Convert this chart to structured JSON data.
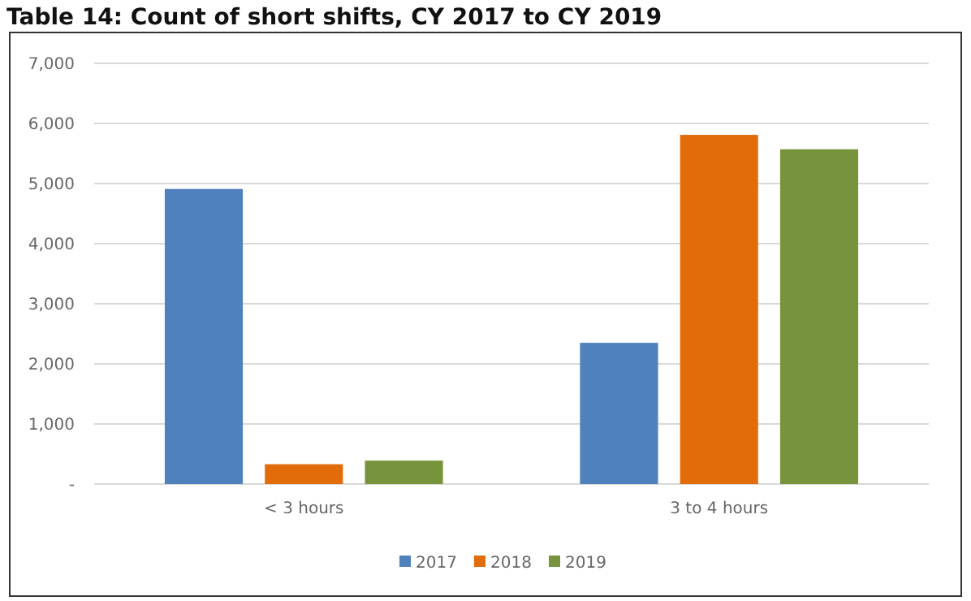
{
  "chart_data": {
    "type": "bar",
    "title": "Table 14: Count of short shifts, CY 2017 to CY 2019",
    "categories": [
      "< 3 hours",
      "3 to 4 hours"
    ],
    "series": [
      {
        "name": "2017",
        "color": "#4f81bd",
        "values": [
          4910,
          2350
        ]
      },
      {
        "name": "2018",
        "color": "#e36c0a",
        "values": [
          330,
          5810
        ]
      },
      {
        "name": "2019",
        "color": "#77933c",
        "values": [
          390,
          5570
        ]
      }
    ],
    "ylim": [
      0,
      7000
    ],
    "yticks": [
      {
        "value": 0,
        "label": "-"
      },
      {
        "value": 1000,
        "label": "1,000"
      },
      {
        "value": 2000,
        "label": "2,000"
      },
      {
        "value": 3000,
        "label": "3,000"
      },
      {
        "value": 4000,
        "label": "4,000"
      },
      {
        "value": 5000,
        "label": "5,000"
      },
      {
        "value": 6000,
        "label": "6,000"
      },
      {
        "value": 7000,
        "label": "7,000"
      }
    ],
    "grid": "y",
    "legend": "bottom"
  }
}
